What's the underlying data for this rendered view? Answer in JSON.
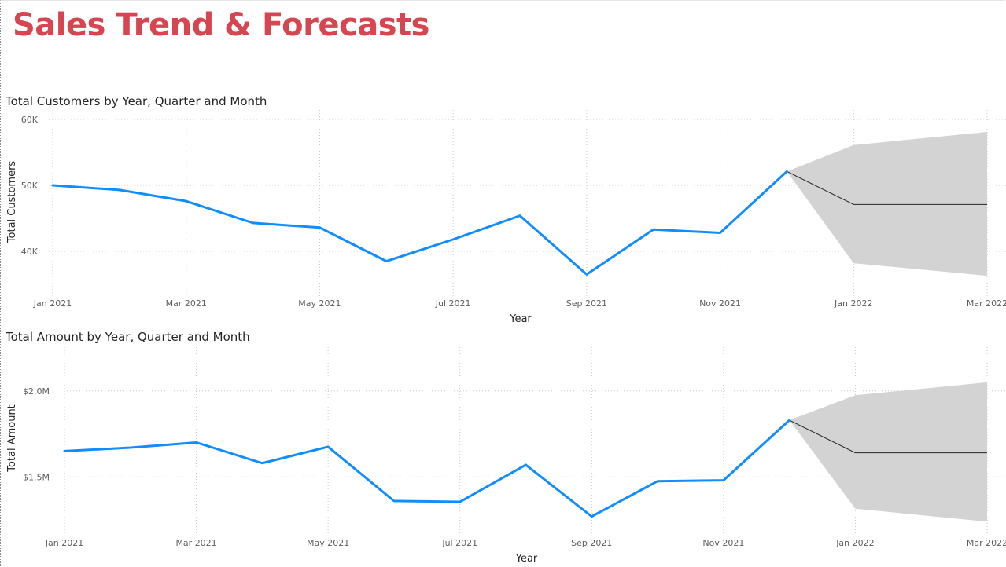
{
  "page": {
    "title": "Sales Trend & Forecasts"
  },
  "colors": {
    "title": "#d64550",
    "series": "#118dff",
    "forecast_line": "#252423",
    "forecast_band": "#d3d3d3",
    "gridline": "#c8c8c8"
  },
  "chart_data": [
    {
      "type": "line",
      "title": "Total Customers by Year, Quarter and Month",
      "xlabel": "Year",
      "ylabel": "Total Customers",
      "x_tick_labels": [
        "Jan 2021",
        "Mar 2021",
        "May 2021",
        "Jul 2021",
        "Sep 2021",
        "Nov 2021",
        "Jan 2022",
        "Mar 2022"
      ],
      "y_ticks": [
        40000,
        50000,
        60000
      ],
      "y_tick_labels": [
        "40K",
        "50K",
        "60K"
      ],
      "ylim": [
        35000,
        60000
      ],
      "grid": true,
      "categories": [
        "Jan 2021",
        "Feb 2021",
        "Mar 2021",
        "Apr 2021",
        "May 2021",
        "Jun 2021",
        "Jul 2021",
        "Aug 2021",
        "Sep 2021",
        "Oct 2021",
        "Nov 2021",
        "Dec 2021"
      ],
      "series": [
        {
          "values": [
            50000,
            49300,
            47600,
            44300,
            43600,
            38500,
            41800,
            45400,
            36500,
            43300,
            42800,
            52100
          ]
        }
      ],
      "forecast": {
        "categories": [
          "Dec 2021",
          "Jan 2022",
          "Mar 2022"
        ],
        "values": [
          52100,
          47100,
          47100
        ],
        "upper": [
          52100,
          56100,
          58100
        ],
        "lower": [
          52100,
          38200,
          36300
        ]
      }
    },
    {
      "type": "line",
      "title": "Total Amount by Year, Quarter and Month",
      "xlabel": "Year",
      "ylabel": "Total Amount",
      "x_tick_labels": [
        "Jan 2021",
        "Mar 2021",
        "May 2021",
        "Jul 2021",
        "Sep 2021",
        "Nov 2021",
        "Jan 2022",
        "Mar 2022"
      ],
      "y_ticks": [
        1500000,
        2000000
      ],
      "y_tick_labels": [
        "$1.5M",
        "$2.0M"
      ],
      "ylim": [
        1250000,
        2200000
      ],
      "grid": true,
      "categories": [
        "Jan 2021",
        "Feb 2021",
        "Mar 2021",
        "Apr 2021",
        "May 2021",
        "Jun 2021",
        "Jul 2021",
        "Aug 2021",
        "Sep 2021",
        "Oct 2021",
        "Nov 2021",
        "Dec 2021"
      ],
      "series": [
        {
          "values": [
            1650000,
            1670000,
            1700000,
            1580000,
            1675000,
            1360000,
            1355000,
            1570000,
            1270000,
            1475000,
            1480000,
            1830000
          ]
        }
      ],
      "forecast": {
        "categories": [
          "Dec 2021",
          "Jan 2022",
          "Mar 2022"
        ],
        "values": [
          1830000,
          1640000,
          1640000
        ],
        "upper": [
          1830000,
          1975000,
          2050000
        ],
        "lower": [
          1830000,
          1315000,
          1240000
        ]
      }
    }
  ]
}
